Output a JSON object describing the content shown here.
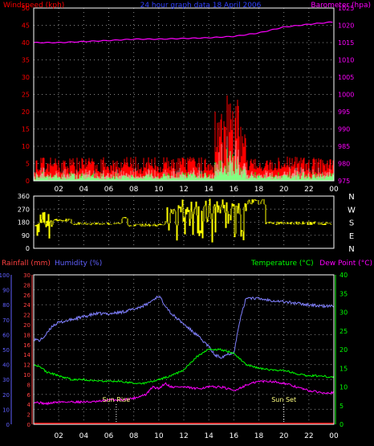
{
  "chart_data": [
    {
      "type": "line",
      "panel": "wind-barometer",
      "title": "24 hour graph data  18 April 2006",
      "ylabel_left": "Windspeed (kph)",
      "ylabel_right": "Barometer (hpa)",
      "left_ticks": [
        "0",
        "5",
        "10",
        "15",
        "20",
        "25",
        "30",
        "35",
        "40",
        "45",
        "50"
      ],
      "right_ticks": [
        "975",
        "980",
        "985",
        "990",
        "995",
        "1000",
        "1005",
        "1010",
        "1015",
        "1020",
        "1025"
      ],
      "ylim_left": [
        0,
        50
      ],
      "ylim_right": [
        975,
        1025
      ],
      "x_ticks": [
        "02",
        "04",
        "06",
        "08",
        "10",
        "12",
        "14",
        "16",
        "18",
        "20",
        "22",
        "00"
      ],
      "grid": true,
      "colors": {
        "wind": "#ff0000",
        "gust_avg": "#00ff00",
        "avg": "#ffffff",
        "barometer": "#ff00ff"
      },
      "barometer": {
        "x": [
          0,
          2,
          4,
          6,
          8,
          10,
          12,
          14,
          16,
          18,
          20,
          22,
          24
        ],
        "y": [
          1015,
          1015,
          1015.3,
          1015.6,
          1016,
          1016,
          1016.2,
          1016.4,
          1016.8,
          1017.8,
          1019.5,
          1020.3,
          1021
        ]
      }
    },
    {
      "type": "scatter",
      "panel": "wind-direction",
      "left_ticks": [
        "360",
        "270",
        "180",
        "90",
        "0"
      ],
      "right_labels": [
        "N",
        "W",
        "S",
        "E",
        "N"
      ],
      "ylim": [
        0,
        360
      ],
      "color": "#ffff00"
    },
    {
      "type": "line",
      "panel": "rain-humidity-temperature",
      "labels": {
        "rainfall": "Rainfall (mm)",
        "humidity": "Humidity (%)",
        "temperature": "Temperature (°C)",
        "dew_point": "Dew Point (°C)"
      },
      "humidity_ticks": [
        "0",
        "10",
        "20",
        "30",
        "40",
        "50",
        "60",
        "70",
        "80",
        "90",
        "100"
      ],
      "rain_ticks": [
        "0",
        "2",
        "4",
        "6",
        "8",
        "10",
        "12",
        "14",
        "16",
        "18",
        "20",
        "22",
        "24",
        "26",
        "28",
        "30"
      ],
      "temp_ticks": [
        "0",
        "5",
        "10",
        "15",
        "20",
        "25",
        "30",
        "35",
        "40"
      ],
      "x_ticks": [
        "02",
        "04",
        "06",
        "08",
        "10",
        "12",
        "14",
        "16",
        "18",
        "20",
        "22",
        "00"
      ],
      "ylim_humidity": [
        0,
        100
      ],
      "ylim_temp": [
        0,
        40
      ],
      "annotations": {
        "sunrise": "Sun Rise",
        "sunset": "Sun Set"
      },
      "sunrise_x": 6.6,
      "sunset_x": 20.0,
      "colors": {
        "humidity": "#8080ff",
        "temperature": "#00ff00",
        "dew_point": "#ff00ff",
        "rainfall": "#ff0000"
      },
      "humidity": {
        "x": [
          0,
          0.5,
          1,
          1.5,
          2,
          3,
          4,
          5,
          6,
          7,
          8,
          9,
          9.5,
          10,
          10.5,
          11,
          12,
          13,
          14,
          14.5,
          15,
          15.5,
          16,
          16.5,
          17,
          18,
          19,
          20,
          21,
          22,
          23,
          24
        ],
        "y": [
          57,
          56,
          60,
          66,
          68,
          70,
          72,
          74,
          74,
          75,
          77,
          80,
          83,
          86,
          80,
          74,
          67,
          60,
          52,
          46,
          45,
          47,
          48,
          70,
          85,
          84,
          83,
          82,
          81,
          80,
          79,
          79
        ]
      },
      "temperature": {
        "x": [
          0,
          0.5,
          1,
          2,
          3,
          4,
          5,
          6,
          7,
          8,
          9,
          10,
          11,
          12,
          13,
          14,
          15,
          16,
          17,
          18,
          19,
          20,
          21,
          22,
          23,
          24
        ],
        "y": [
          16,
          15.5,
          14,
          13,
          12,
          12,
          11.5,
          11.5,
          11.5,
          11,
          11,
          12,
          13,
          14.5,
          18,
          20,
          20,
          19,
          16,
          15,
          14.5,
          14.5,
          13.5,
          13,
          13,
          12.5
        ]
      },
      "dew_point": {
        "x": [
          0,
          1,
          2,
          3,
          4,
          5,
          6,
          7,
          8,
          9,
          9.5,
          10,
          10.5,
          11,
          12,
          13,
          14,
          15,
          16,
          17,
          18,
          19,
          20,
          21,
          22,
          23,
          24
        ],
        "y": [
          6,
          5.5,
          6,
          6,
          6,
          6,
          6.5,
          6.5,
          7,
          8,
          10,
          9.5,
          11,
          10,
          10,
          9.5,
          10,
          10,
          9,
          10.5,
          11.5,
          11.5,
          11,
          10,
          9,
          8.5,
          8.5
        ]
      },
      "rainfall": {
        "x": [
          0,
          24
        ],
        "y": [
          0,
          0
        ]
      }
    }
  ]
}
